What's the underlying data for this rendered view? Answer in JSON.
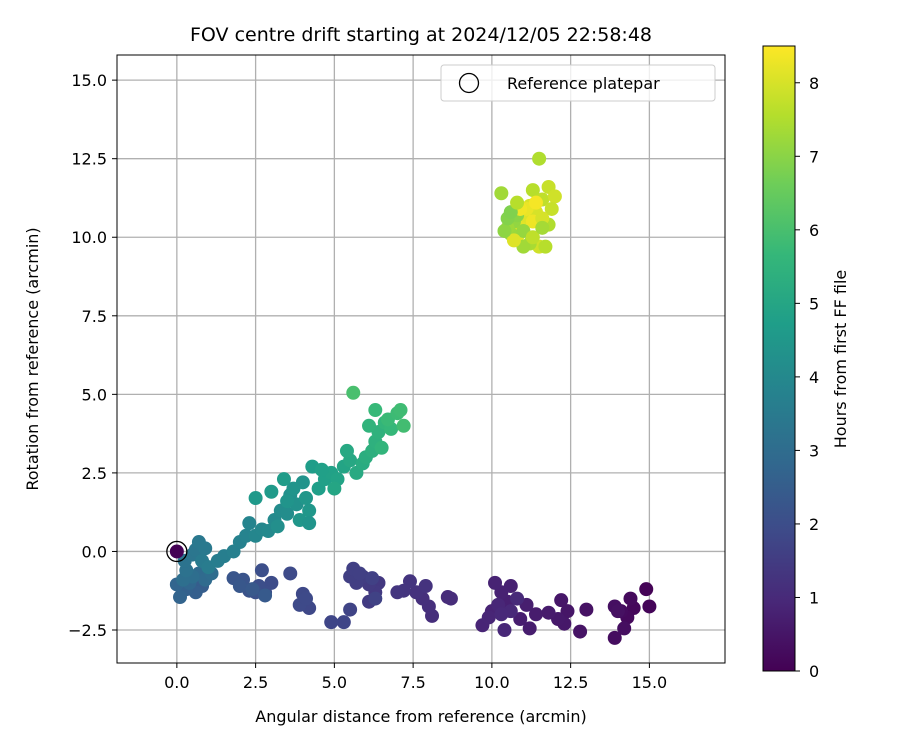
{
  "chart_data": {
    "type": "scatter",
    "title": "FOV centre drift starting at 2024/12/05 22:58:48",
    "xlabel": "Angular distance from reference (arcmin)",
    "ylabel": "Rotation from reference (arcmin)",
    "xlim": [
      -1.9,
      17.4
    ],
    "ylim": [
      -3.55,
      15.8
    ],
    "xticks": [
      0.0,
      2.5,
      5.0,
      7.5,
      10.0,
      12.5,
      15.0
    ],
    "xtick_labels": [
      "0.0",
      "2.5",
      "5.0",
      "7.5",
      "10.0",
      "12.5",
      "15.0"
    ],
    "yticks": [
      -2.5,
      0.0,
      2.5,
      5.0,
      7.5,
      10.0,
      12.5,
      15.0
    ],
    "ytick_labels": [
      "−2.5",
      "0.0",
      "2.5",
      "5.0",
      "7.5",
      "10.0",
      "12.5",
      "15.0"
    ],
    "grid": true,
    "legend": {
      "position": "top-right",
      "entries": [
        "Reference platepar"
      ]
    },
    "colorbar": {
      "label": "Hours from first FF file",
      "colormap": "viridis",
      "range": [
        0,
        8.5
      ],
      "ticks": [
        0,
        1,
        2,
        3,
        4,
        5,
        6,
        7,
        8
      ],
      "tick_labels": [
        "0",
        "1",
        "2",
        "3",
        "4",
        "5",
        "6",
        "7",
        "8"
      ]
    },
    "reference_point": {
      "x": 0.0,
      "y": 0.0
    },
    "series": [
      {
        "points": [
          [
            14.9,
            -1.2,
            0.05
          ],
          [
            15.0,
            -1.75,
            0.1
          ],
          [
            14.5,
            -1.8,
            0.15
          ],
          [
            14.3,
            -2.1,
            0.2
          ],
          [
            14.4,
            -1.5,
            0.22
          ],
          [
            14.1,
            -1.9,
            0.25
          ],
          [
            13.9,
            -2.75,
            0.3
          ],
          [
            14.2,
            -2.45,
            0.32
          ],
          [
            13.9,
            -1.75,
            0.35
          ],
          [
            14.0,
            -1.9,
            0.38
          ],
          [
            13.0,
            -1.85,
            0.42
          ],
          [
            12.8,
            -2.55,
            0.45
          ],
          [
            12.4,
            -1.9,
            0.5
          ],
          [
            12.2,
            -1.55,
            0.52
          ],
          [
            12.3,
            -2.3,
            0.55
          ],
          [
            12.1,
            -2.15,
            0.58
          ],
          [
            11.8,
            -1.95,
            0.62
          ],
          [
            11.4,
            -2.0,
            0.65
          ],
          [
            11.2,
            -2.45,
            0.68
          ],
          [
            10.9,
            -2.15,
            0.7
          ],
          [
            11.1,
            -1.7,
            0.72
          ],
          [
            10.5,
            -1.6,
            0.75
          ],
          [
            10.6,
            -1.1,
            0.78
          ],
          [
            10.3,
            -1.3,
            0.8
          ],
          [
            10.1,
            -1.0,
            0.82
          ],
          [
            10.0,
            -1.9,
            0.85
          ],
          [
            9.7,
            -2.35,
            0.88
          ],
          [
            9.9,
            -2.1,
            0.9
          ],
          [
            10.2,
            -1.7,
            0.92
          ],
          [
            10.4,
            -2.5,
            0.94
          ],
          [
            10.6,
            -1.9,
            0.96
          ],
          [
            10.3,
            -2.0,
            0.98
          ],
          [
            10.8,
            -1.5,
            1.0
          ],
          [
            8.6,
            -1.45,
            1.05
          ],
          [
            8.7,
            -1.5,
            1.08
          ],
          [
            8.1,
            -2.05,
            1.12
          ],
          [
            8.0,
            -1.75,
            1.15
          ],
          [
            7.8,
            -1.5,
            1.18
          ],
          [
            7.6,
            -1.3,
            1.22
          ],
          [
            7.9,
            -1.1,
            1.25
          ],
          [
            7.4,
            -0.95,
            1.28
          ],
          [
            7.2,
            -1.25,
            1.3
          ],
          [
            7.0,
            -1.3,
            1.32
          ],
          [
            6.4,
            -1.0,
            1.38
          ],
          [
            6.3,
            -1.3,
            1.42
          ],
          [
            6.1,
            -1.05,
            1.45
          ],
          [
            6.1,
            -1.6,
            1.48
          ],
          [
            5.9,
            -0.8,
            1.52
          ],
          [
            5.7,
            -1.0,
            1.55
          ],
          [
            5.5,
            -0.8,
            1.58
          ],
          [
            5.6,
            -0.55,
            1.6
          ],
          [
            5.8,
            -0.7,
            1.62
          ],
          [
            6.2,
            -0.85,
            1.65
          ],
          [
            6.3,
            -1.5,
            1.68
          ],
          [
            5.5,
            -1.85,
            1.72
          ],
          [
            5.3,
            -2.25,
            1.75
          ],
          [
            4.9,
            -2.25,
            1.78
          ],
          [
            4.2,
            -1.8,
            1.82
          ],
          [
            4.0,
            -1.35,
            1.85
          ],
          [
            3.9,
            -1.7,
            1.88
          ],
          [
            4.1,
            -1.5,
            1.9
          ],
          [
            3.6,
            -0.7,
            1.92
          ],
          [
            3.0,
            -1.0,
            1.95
          ],
          [
            2.8,
            -1.3,
            1.98
          ],
          [
            2.6,
            -1.1,
            2.0
          ],
          [
            2.7,
            -0.6,
            2.05
          ],
          [
            2.5,
            -1.3,
            2.1
          ],
          [
            2.3,
            -1.25,
            2.15
          ],
          [
            2.1,
            -0.9,
            2.2
          ],
          [
            1.8,
            -0.85,
            2.25
          ],
          [
            2.0,
            -1.1,
            2.3
          ],
          [
            2.4,
            -1.2,
            2.35
          ],
          [
            2.8,
            -1.4,
            2.4
          ],
          [
            0.8,
            -1.1,
            2.5
          ],
          [
            0.6,
            -1.3,
            2.55
          ],
          [
            0.3,
            -1.2,
            2.6
          ],
          [
            0.1,
            -1.45,
            2.7
          ],
          [
            0.0,
            -1.05,
            2.75
          ],
          [
            0.4,
            -1.0,
            2.8
          ],
          [
            0.7,
            -0.7,
            2.9
          ],
          [
            0.9,
            -0.9,
            2.95
          ],
          [
            1.1,
            -0.7,
            3.0
          ],
          [
            0.5,
            -0.8,
            3.05
          ],
          [
            0.2,
            -0.9,
            3.1
          ],
          [
            0.3,
            -0.6,
            3.2
          ],
          [
            0.25,
            -0.3,
            3.25
          ],
          [
            0.5,
            -0.1,
            3.3
          ],
          [
            0.6,
            0.05,
            3.35
          ],
          [
            0.7,
            0.3,
            3.4
          ],
          [
            0.9,
            0.1,
            3.45
          ],
          [
            0.8,
            -0.3,
            3.5
          ],
          [
            1.0,
            -0.5,
            3.55
          ],
          [
            1.3,
            -0.3,
            3.6
          ],
          [
            1.5,
            -0.15,
            3.65
          ],
          [
            1.8,
            0.0,
            3.7
          ],
          [
            2.0,
            0.3,
            3.75
          ],
          [
            2.2,
            0.5,
            3.8
          ],
          [
            2.3,
            0.9,
            3.85
          ],
          [
            2.5,
            0.5,
            3.9
          ],
          [
            2.7,
            0.7,
            3.95
          ],
          [
            2.9,
            0.65,
            4.0
          ],
          [
            3.1,
            1.0,
            4.05
          ],
          [
            3.3,
            1.3,
            4.1
          ],
          [
            3.5,
            1.2,
            4.15
          ],
          [
            3.2,
            0.8,
            4.2
          ],
          [
            3.6,
            1.8,
            4.25
          ],
          [
            3.8,
            1.5,
            4.3
          ],
          [
            4.0,
            2.2,
            4.35
          ],
          [
            3.7,
            2.0,
            4.4
          ],
          [
            3.9,
            1.0,
            4.45
          ],
          [
            4.2,
            1.3,
            4.5
          ],
          [
            2.5,
            1.7,
            4.55
          ],
          [
            3.0,
            1.9,
            4.6
          ],
          [
            3.4,
            2.3,
            4.65
          ],
          [
            4.3,
            2.7,
            4.7
          ],
          [
            4.5,
            2.0,
            4.75
          ],
          [
            4.7,
            2.3,
            4.8
          ],
          [
            4.9,
            2.5,
            4.85
          ],
          [
            5.1,
            2.3,
            4.9
          ],
          [
            5.3,
            2.7,
            4.95
          ],
          [
            5.0,
            2.0,
            5.0
          ],
          [
            5.5,
            2.9,
            5.05
          ],
          [
            5.4,
            3.2,
            5.1
          ],
          [
            5.7,
            2.5,
            5.15
          ],
          [
            5.9,
            2.8,
            5.2
          ],
          [
            6.0,
            3.0,
            5.3
          ],
          [
            6.2,
            3.2,
            5.35
          ],
          [
            6.3,
            3.5,
            5.4
          ],
          [
            6.4,
            3.8,
            5.45
          ],
          [
            6.1,
            4.0,
            5.5
          ],
          [
            6.5,
            3.3,
            5.55
          ],
          [
            6.6,
            4.1,
            5.6
          ],
          [
            6.8,
            3.9,
            5.65
          ],
          [
            6.3,
            4.5,
            5.7
          ],
          [
            6.7,
            4.2,
            5.75
          ],
          [
            7.0,
            4.4,
            5.8
          ],
          [
            7.1,
            4.5,
            5.85
          ],
          [
            7.2,
            4.0,
            5.9
          ],
          [
            5.6,
            5.05,
            6.0
          ],
          [
            4.2,
            0.9,
            4.4
          ],
          [
            4.1,
            1.7,
            4.5
          ],
          [
            3.5,
            1.6,
            4.4
          ],
          [
            4.6,
            2.6,
            4.8
          ],
          [
            11.5,
            12.5,
            7.5
          ],
          [
            11.3,
            11.5,
            7.6
          ],
          [
            11.6,
            11.2,
            7.7
          ],
          [
            11.8,
            11.6,
            7.8
          ],
          [
            12.0,
            11.3,
            7.9
          ],
          [
            11.4,
            10.8,
            8.0
          ],
          [
            11.2,
            11.0,
            8.05
          ],
          [
            11.0,
            10.6,
            8.1
          ],
          [
            10.9,
            10.3,
            8.15
          ],
          [
            10.8,
            10.0,
            8.2
          ],
          [
            11.1,
            10.9,
            8.25
          ],
          [
            11.3,
            10.5,
            8.3
          ],
          [
            11.5,
            9.7,
            7.9
          ],
          [
            11.7,
            9.7,
            7.6
          ],
          [
            11.2,
            9.8,
            7.4
          ],
          [
            11.0,
            9.7,
            7.3
          ],
          [
            10.6,
            10.1,
            7.2
          ],
          [
            10.7,
            10.5,
            7.1
          ],
          [
            10.8,
            10.7,
            7.0
          ],
          [
            11.0,
            10.2,
            7.15
          ],
          [
            10.5,
            10.3,
            7.25
          ],
          [
            11.8,
            10.4,
            7.5
          ],
          [
            11.9,
            10.9,
            7.8
          ],
          [
            11.6,
            10.6,
            8.0
          ],
          [
            10.9,
            10.9,
            8.35
          ],
          [
            11.4,
            11.1,
            8.4
          ],
          [
            10.7,
            9.9,
            8.1
          ],
          [
            10.4,
            10.2,
            7.05
          ],
          [
            10.5,
            10.6,
            6.9
          ],
          [
            10.6,
            10.8,
            6.85
          ],
          [
            10.3,
            11.4,
            7.3
          ],
          [
            10.8,
            11.1,
            7.6
          ],
          [
            11.3,
            10.0,
            7.7
          ],
          [
            11.6,
            10.3,
            7.35
          ]
        ]
      }
    ]
  }
}
